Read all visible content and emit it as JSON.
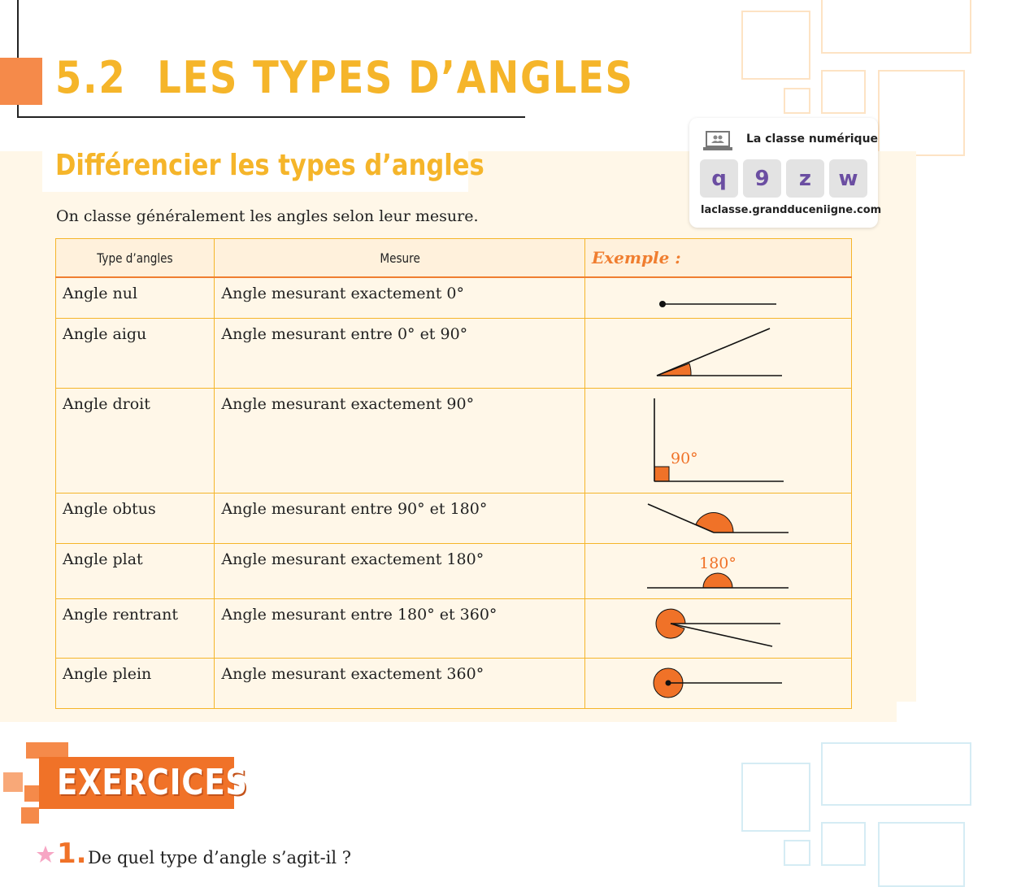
{
  "header": {
    "section_number": "5.2",
    "section_title": "LES TYPES D’ANGLES",
    "subtitle": "Différencier les types d’angles",
    "intro": "On classe généralement les angles selon leur mesure."
  },
  "numeric_class": {
    "label": "La classe numérique",
    "keys": [
      "q",
      "9",
      "z",
      "w"
    ],
    "url": "laclasse.grandduceniigne.com"
  },
  "table": {
    "headers": [
      "Type d’angles",
      "Mesure",
      "Exemple :"
    ],
    "rows": [
      {
        "type": "Angle nul",
        "measure": "Angle mesurant exactement 0°"
      },
      {
        "type": "Angle aigu",
        "measure": "Angle mesurant entre 0° et 90°"
      },
      {
        "type": "Angle droit",
        "measure": "Angle mesurant exactement 90°",
        "figure_label": "90°"
      },
      {
        "type": "Angle obtus",
        "measure": "Angle mesurant entre 90° et 180°"
      },
      {
        "type": "Angle plat",
        "measure": "Angle mesurant exactement 180°",
        "figure_label": "180°"
      },
      {
        "type": "Angle rentrant",
        "measure": "Angle mesurant entre 180° et 360°"
      },
      {
        "type": "Angle plein",
        "measure": "Angle mesurant exactement 360°"
      }
    ]
  },
  "colors": {
    "accent_orange": "#f07228",
    "title_yellow": "#f5b52a",
    "panel_cream": "#fff7e8",
    "key_purple": "#6b4ea2"
  },
  "exercises": {
    "title": "EXERCICES",
    "question_number": "1.",
    "question_text": "De quel type d’angle s’agit-il ?",
    "question_icon": "star-icon"
  }
}
